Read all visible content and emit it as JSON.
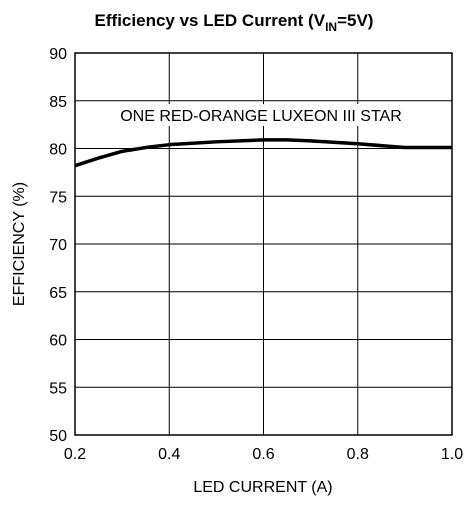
{
  "chart_data": {
    "type": "line",
    "title": [
      "Efficiency vs LED Current (V",
      "IN",
      "=5V)"
    ],
    "xlabel": "LED CURRENT (A)",
    "ylabel": "EFFICIENCY (%)",
    "annotation": "ONE RED-ORANGE LUXEON III STAR",
    "x": [
      0.2,
      0.25,
      0.3,
      0.35,
      0.4,
      0.5,
      0.6,
      0.65,
      0.7,
      0.8,
      0.9,
      1.0
    ],
    "series": [
      {
        "name": "ONE RED-ORANGE LUXEON III STAR",
        "color": "#000000",
        "values": [
          78.2,
          79.0,
          79.7,
          80.1,
          80.4,
          80.7,
          80.9,
          80.9,
          80.8,
          80.5,
          80.1,
          80.1
        ]
      }
    ],
    "xlim": [
      0.2,
      1.0
    ],
    "xticks": [
      0.2,
      0.4,
      0.6,
      0.8,
      {
        "value": 1.0,
        "label": "1.0"
      }
    ],
    "ylim": [
      50,
      90
    ],
    "yticks": [
      50,
      55,
      60,
      65,
      70,
      75,
      80,
      85,
      90
    ],
    "grid": true
  }
}
